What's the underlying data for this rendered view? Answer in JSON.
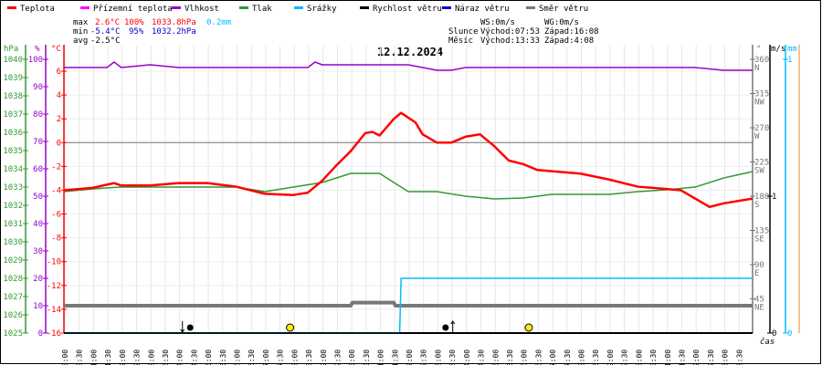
{
  "legend": [
    {
      "label": "Teplota",
      "color": "#ff0000"
    },
    {
      "label": "Přízemní teplota",
      "color": "#ff00ff"
    },
    {
      "label": "Vlhkost",
      "color": "#9900cc"
    },
    {
      "label": "Tlak",
      "color": "#339933"
    },
    {
      "label": "Srážky",
      "color": "#00bbff"
    },
    {
      "label": "Rychlost větru",
      "color": "#000000"
    },
    {
      "label": "Náraz větru",
      "color": "#0000cc"
    },
    {
      "label": "Směr větru",
      "color": "#777777"
    }
  ],
  "stats": {
    "max_label": "max",
    "max_temp": "2.6°C",
    "max_hum": "100%",
    "max_press": "1033.8hPa",
    "max_rain": "0.2mm",
    "min_label": "min",
    "min_temp": "-5.4°C",
    "min_hum": "95%",
    "min_press": "1032.2hPa",
    "avg_label": "avg",
    "avg_temp": "-2.5°C"
  },
  "astro": {
    "ws": "WS:0m/s",
    "wg": "WG:0m/s",
    "sun_label": "Slunce",
    "sunrise": "Východ:07:53",
    "sunset": "Západ:16:08",
    "moon_label": "Měsíc",
    "moonrise": "Východ:13:33",
    "moonset": "Západ:4:08"
  },
  "chart_data": {
    "type": "line",
    "title": "12.12.2024",
    "xlabel": "čas",
    "x_unit": "hours",
    "xlim": [
      0,
      24
    ],
    "x_ticks": [
      "00:00",
      "00:30",
      "01:00",
      "01:30",
      "02:00",
      "02:30",
      "03:00",
      "03:30",
      "04:00",
      "04:30",
      "05:00",
      "05:30",
      "06:00",
      "06:30",
      "07:00",
      "07:30",
      "08:00",
      "08:30",
      "09:00",
      "09:30",
      "10:00",
      "10:30",
      "11:00",
      "11:30",
      "12:00",
      "12:30",
      "13:00",
      "13:30",
      "14:00",
      "14:30",
      "15:00",
      "15:30",
      "16:00",
      "16:30",
      "17:00",
      "17:30",
      "18:00",
      "18:30",
      "19:00",
      "19:30",
      "20:00",
      "20:30",
      "21:00",
      "21:30",
      "22:00",
      "22:30",
      "23:00",
      "23:30"
    ],
    "axes": {
      "pressure": {
        "unit": "hPa",
        "range": [
          1025,
          1040
        ],
        "ticks": [
          1025,
          1026,
          1027,
          1028,
          1029,
          1030,
          1031,
          1032,
          1033,
          1034,
          1035,
          1036,
          1037,
          1038,
          1039,
          1040
        ],
        "color": "#339933"
      },
      "humidity": {
        "unit": "%",
        "range": [
          0,
          100
        ],
        "ticks": [
          0,
          10,
          20,
          30,
          40,
          50,
          60,
          70,
          80,
          90,
          100
        ],
        "color": "#9900cc"
      },
      "temperature": {
        "unit": "°C",
        "range": [
          -16,
          7
        ],
        "ticks": [
          -16,
          -14,
          -12,
          -10,
          -8,
          -6,
          -4,
          -2,
          0,
          2,
          4,
          6
        ],
        "color": "#ff0000"
      },
      "direction": {
        "unit": "°",
        "range": [
          0,
          360
        ],
        "ticks": [
          {
            "v": 45,
            "l": "NE"
          },
          {
            "v": 90,
            "l": "E"
          },
          {
            "v": 135,
            "l": "SE"
          },
          {
            "v": 180,
            "l": "S"
          },
          {
            "v": 225,
            "l": "SW"
          },
          {
            "v": 270,
            "l": "W"
          },
          {
            "v": 315,
            "l": "NW"
          },
          {
            "v": 360,
            "l": "N"
          }
        ],
        "color": "#777777"
      },
      "wind": {
        "unit": "m/s",
        "range": [
          0,
          2
        ],
        "ticks": [
          0,
          1
        ],
        "color": "#000000"
      },
      "rain": {
        "unit": "mm",
        "range": [
          0,
          1
        ],
        "ticks": [
          0,
          1
        ],
        "color": "#00bbff"
      }
    },
    "series": [
      {
        "name": "Teplota",
        "axis": "temperature",
        "color": "#ff0000",
        "x": [
          0,
          1,
          1.75,
          2,
          3,
          4,
          5,
          6,
          7,
          8,
          8.5,
          9,
          9.5,
          10,
          10.5,
          10.75,
          11,
          11.5,
          11.75,
          12,
          12.25,
          12.5,
          13,
          13.5,
          14,
          14.5,
          15,
          15.5,
          16,
          16.5,
          17,
          18,
          19,
          20,
          21,
          21.5,
          22,
          22.5,
          23,
          24
        ],
        "y": [
          -4.0,
          -3.8,
          -3.4,
          -3.6,
          -3.6,
          -3.4,
          -3.4,
          -3.7,
          -4.3,
          -4.4,
          -4.2,
          -3.2,
          -1.9,
          -0.7,
          0.8,
          0.9,
          0.6,
          2.0,
          2.5,
          2.1,
          1.7,
          0.7,
          0.0,
          0.0,
          0.5,
          0.7,
          -0.3,
          -1.5,
          -1.8,
          -2.3,
          -2.4,
          -2.6,
          -3.1,
          -3.7,
          -3.9,
          -4.0,
          -4.7,
          -5.4,
          -5.1,
          -4.7
        ]
      },
      {
        "name": "Vlhkost",
        "axis": "humidity",
        "color": "#9900cc",
        "x": [
          0,
          0.5,
          1,
          1.5,
          1.75,
          2,
          3,
          4,
          5,
          6,
          7,
          8,
          8.5,
          8.75,
          9,
          10,
          11,
          12,
          12.5,
          13,
          13.5,
          14,
          15,
          16,
          17,
          18,
          19,
          20,
          21,
          22,
          23,
          24
        ],
        "y": [
          97,
          97,
          97,
          97,
          99,
          97,
          98,
          97,
          97,
          97,
          97,
          97,
          97,
          99,
          98,
          98,
          98,
          98,
          97,
          96,
          96,
          97,
          97,
          97,
          97,
          97,
          97,
          97,
          97,
          97,
          96,
          96
        ]
      },
      {
        "name": "Tlak",
        "axis": "pressure",
        "color": "#339933",
        "x": [
          0,
          1,
          2,
          3,
          4,
          5,
          6,
          7,
          8,
          9,
          10,
          11,
          11.5,
          12,
          13,
          14,
          15,
          16,
          17,
          18,
          19,
          20,
          21,
          22,
          23,
          24
        ],
        "y": [
          1032.75,
          1032.9,
          1033.0,
          1033.0,
          1033.0,
          1033.0,
          1033.0,
          1032.75,
          1033.0,
          1033.25,
          1033.75,
          1033.75,
          1033.25,
          1032.75,
          1032.75,
          1032.5,
          1032.35,
          1032.4,
          1032.6,
          1032.6,
          1032.6,
          1032.75,
          1032.85,
          1033.0,
          1033.5,
          1033.85
        ]
      },
      {
        "name": "Směr větru",
        "axis": "direction",
        "color": "#777777",
        "x": [
          0,
          0.1,
          0.15,
          10,
          10.05,
          11.5,
          11.55,
          24
        ],
        "y": [
          36,
          36,
          36,
          36,
          40,
          40,
          36,
          36
        ]
      },
      {
        "name": "Srážky",
        "axis": "rain",
        "color": "#00bbff",
        "x": [
          0,
          11.7,
          11.75,
          24
        ],
        "y": [
          0,
          0,
          0.2,
          0.2
        ]
      },
      {
        "name": "Rychlost větru",
        "axis": "wind",
        "color": "#000000",
        "x": [
          0,
          24
        ],
        "y": [
          0,
          0
        ]
      }
    ],
    "reference_line": {
      "axis": "temperature",
      "value": 0
    },
    "markers": [
      {
        "type": "moonset",
        "x": 4.13
      },
      {
        "type": "moon",
        "x": 4.4
      },
      {
        "type": "sunrise",
        "x": 7.88
      },
      {
        "type": "moon",
        "x": 13.3
      },
      {
        "type": "moonrise",
        "x": 13.55
      },
      {
        "type": "sunset",
        "x": 16.2
      }
    ],
    "grid": true
  }
}
